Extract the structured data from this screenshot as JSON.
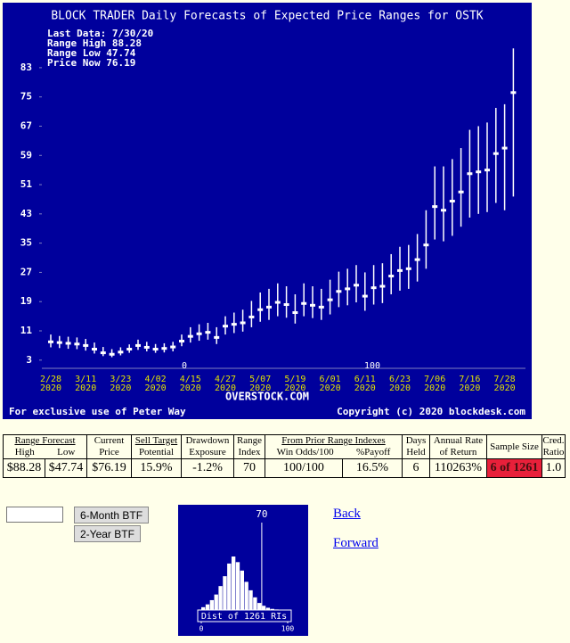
{
  "chart_data": [
    {
      "type": "range",
      "title": "BLOCK TRADER Daily Forecasts of Expected Price Ranges for  OSTK",
      "info": [
        "Last Data: 7/30/20",
        "Range High 88.28",
        "Range Low  47.74",
        "Price Now  76.19"
      ],
      "brand": "OVERSTOCK.COM",
      "footer_left": "For exclusive use of Peter Way",
      "footer_right": "Copyright (c) 2020 blockdesk.com",
      "categories": [
        "2/28",
        null,
        null,
        null,
        "3/11",
        null,
        null,
        null,
        "3/23",
        null,
        null,
        null,
        "4/02",
        null,
        null,
        null,
        "4/15",
        null,
        null,
        null,
        "4/27",
        null,
        null,
        null,
        "5/07",
        null,
        null,
        null,
        "5/19",
        null,
        null,
        null,
        "6/01",
        null,
        null,
        null,
        "6/11",
        null,
        null,
        null,
        "6/23",
        null,
        null,
        null,
        "7/06",
        null,
        null,
        null,
        "7/16",
        null,
        null,
        null,
        "7/28",
        null
      ],
      "year_label": "2020",
      "range_index_marks": [
        0,
        100
      ],
      "high": [
        10,
        9.6,
        9.4,
        9.2,
        8.8,
        7.8,
        6.6,
        6,
        6.5,
        7.3,
        8.6,
        8,
        7.4,
        7.6,
        8,
        10,
        12,
        12.8,
        13.2,
        12,
        15,
        16,
        16.8,
        19.2,
        21.5,
        22.5,
        24,
        23.2,
        21,
        24,
        23.2,
        22.5,
        25,
        27.2,
        28,
        29,
        27,
        29,
        29.5,
        32,
        34,
        34.5,
        37.5,
        44,
        56,
        56,
        58,
        61,
        66,
        67,
        68,
        72,
        73,
        88.28
      ],
      "low": [
        6.5,
        6.3,
        6.1,
        6,
        5.6,
        4.8,
        4.1,
        3.8,
        4.3,
        5,
        5.8,
        5.4,
        5,
        5.1,
        5.4,
        6.8,
        7.8,
        8.3,
        8.6,
        7.4,
        10,
        10.4,
        10.8,
        12,
        13.5,
        14,
        15,
        14.6,
        13,
        15,
        14.5,
        14,
        15.5,
        17.5,
        18,
        18.8,
        16.5,
        18.2,
        18.6,
        21,
        22,
        22.5,
        24.5,
        28,
        36,
        35.5,
        37,
        39.5,
        42,
        43,
        43.5,
        46,
        44,
        47.74
      ],
      "price": [
        8,
        7.8,
        7.6,
        7.4,
        7,
        6,
        5,
        4.6,
        5.2,
        6,
        7,
        6.5,
        6,
        6.2,
        6.6,
        8.2,
        9.5,
        10.2,
        10.6,
        9.2,
        12.3,
        12.8,
        13.2,
        14.8,
        16.8,
        17.5,
        18.8,
        18.2,
        16,
        18.5,
        18,
        17.5,
        19.5,
        21.8,
        22.5,
        23.5,
        20.5,
        22.8,
        23.2,
        26,
        27.5,
        28,
        30.5,
        34.5,
        45,
        44,
        46.5,
        49,
        54,
        54.5,
        55,
        59.5,
        61,
        76.19
      ],
      "color": "#ffffff",
      "ylim": [
        1,
        92
      ],
      "yticks": [
        3,
        11,
        19,
        27,
        35,
        43,
        51,
        59,
        67,
        75,
        83
      ]
    },
    {
      "type": "histogram",
      "title": "Dist of 1261 RIs",
      "bins": [
        0,
        5,
        10,
        15,
        20,
        25,
        30,
        35,
        40,
        45,
        50,
        55,
        60,
        65,
        70,
        75,
        80,
        85,
        90,
        95,
        100
      ],
      "counts": [
        10,
        20,
        35,
        55,
        85,
        120,
        165,
        190,
        170,
        140,
        100,
        70,
        45,
        25,
        15,
        8,
        4,
        2,
        1,
        1
      ],
      "marker": 70,
      "color": "#ffffff",
      "xlim": [
        0,
        100
      ],
      "xticks": [
        0,
        100
      ]
    }
  ],
  "table": {
    "header_top": [
      "Range Forecast",
      "Current",
      "Sell Target",
      "Drawdown",
      "Range",
      "From Prior Range Indexes",
      "Days",
      "Annual Rate",
      "Sample Size",
      "Cred."
    ],
    "header_bottom": [
      "High",
      "Low",
      "Price",
      "Potential",
      "Exposure",
      "Index",
      "Win Odds/100",
      "%Payoff",
      "Held",
      "of Return",
      "Ratio"
    ],
    "row": [
      "$88.28",
      "$47.74",
      "$76.19",
      "15.9%",
      "-1.2%",
      "70",
      "100/100",
      "16.5%",
      "6",
      "110263%",
      "6 of 1261",
      "1.0"
    ]
  },
  "controls": {
    "buttons": [
      "6-Month BTF",
      "2-Year BTF"
    ]
  },
  "links": [
    "Back",
    "Forward"
  ]
}
